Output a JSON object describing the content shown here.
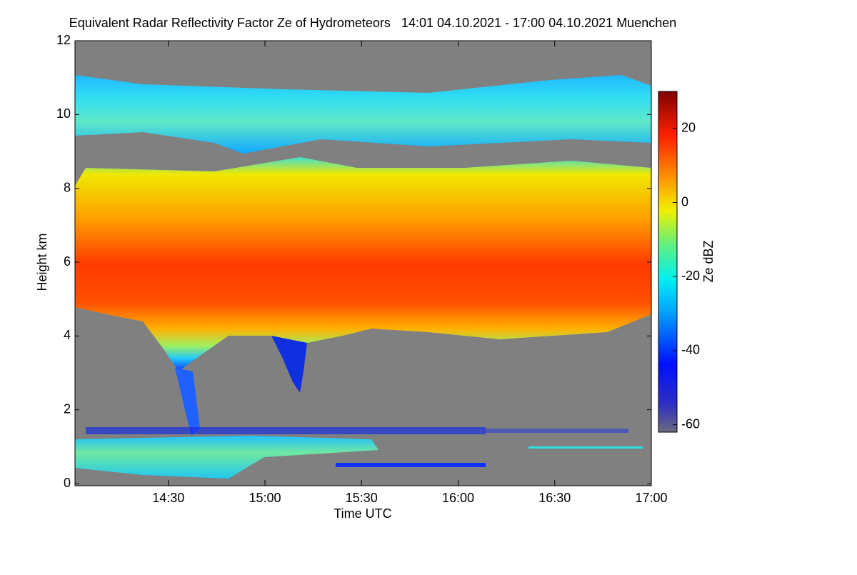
{
  "chart_data": {
    "type": "heatmap",
    "title": "Equivalent Radar Reflectivity Factor Ze of Hydrometeors   14:01 04.10.2021 - 17:00 04.10.2021 Muenchen",
    "x_label": "Time UTC",
    "y_label": "Height km",
    "colorbar_label": "Ze dBZ",
    "xlim": [
      1,
      180
    ],
    "xticks": [
      {
        "value": 30,
        "label": "14:30"
      },
      {
        "value": 60,
        "label": "15:00"
      },
      {
        "value": 90,
        "label": "15:30"
      },
      {
        "value": 120,
        "label": "16:00"
      },
      {
        "value": 150,
        "label": "16:30"
      },
      {
        "value": 180,
        "label": "17:00"
      }
    ],
    "ylim": [
      0,
      12
    ],
    "yticks": [
      0,
      2,
      4,
      6,
      8,
      10,
      12
    ],
    "clim": [
      -62,
      30
    ],
    "cticks": [
      20,
      0,
      -20,
      -40,
      -60
    ]
  }
}
